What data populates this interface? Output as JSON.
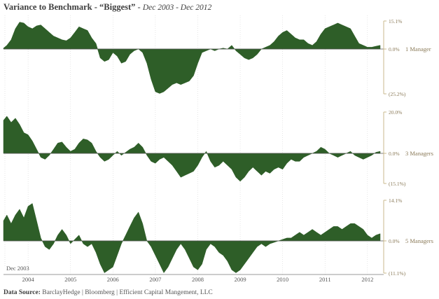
{
  "title": {
    "main": "Variance to Benchmark - “Biggest”",
    "separator": " - ",
    "range": "Dec 2003 - Dec 2012"
  },
  "source": {
    "label": "Data Source:",
    "text": "BarclayHedge | Bloomberg | Efficient Capital Mangement, LLC"
  },
  "colors": {
    "fill": "#2e5e28",
    "axis": "#c9b88d",
    "grid": "#d6d6d6",
    "tick_text": "#8a7a58"
  },
  "chart_data": [
    {
      "type": "area",
      "series_label": "1 Manager",
      "tick_labels": {
        "top": "15.1%",
        "zero": "0.0%",
        "bottom": "(25.2%)"
      },
      "ylim": [
        -25.2,
        15.1
      ],
      "x": [
        2003.92,
        2004.0,
        2004.1,
        2004.2,
        2004.3,
        2004.4,
        2004.5,
        2004.6,
        2004.7,
        2004.8,
        2004.9,
        2005.0,
        2005.1,
        2005.2,
        2005.3,
        2005.4,
        2005.5,
        2005.6,
        2005.7,
        2005.8,
        2005.9,
        2006.0,
        2006.1,
        2006.2,
        2006.3,
        2006.4,
        2006.5,
        2006.6,
        2006.7,
        2006.8,
        2006.9,
        2007.0,
        2007.1,
        2007.2,
        2007.3,
        2007.4,
        2007.5,
        2007.6,
        2007.7,
        2007.8,
        2007.9,
        2008.0,
        2008.1,
        2008.2,
        2008.3,
        2008.4,
        2008.5,
        2008.6,
        2008.7,
        2008.8,
        2008.9,
        2009.0,
        2009.1,
        2009.2,
        2009.3,
        2009.4,
        2009.5,
        2009.6,
        2009.7,
        2009.8,
        2009.9,
        2010.0,
        2010.1,
        2010.2,
        2010.3,
        2010.4,
        2010.5,
        2010.6,
        2010.7,
        2010.8,
        2010.9,
        2011.0,
        2011.1,
        2011.2,
        2011.3,
        2011.4,
        2011.5,
        2011.6,
        2011.7,
        2011.8,
        2011.9,
        2012.0,
        2012.1,
        2012.2,
        2012.3,
        2012.4,
        2012.5,
        2012.6,
        2012.7,
        2012.8
      ],
      "values": [
        0.5,
        2,
        5,
        11,
        14.5,
        14,
        12,
        11,
        12.5,
        13,
        11,
        9,
        7,
        6,
        5,
        4.5,
        6,
        9,
        12,
        11,
        10,
        6,
        3,
        -5,
        -7,
        -6,
        -2,
        -4,
        -8,
        -7,
        -3,
        -1,
        0,
        -2,
        -8,
        -17,
        -24,
        -25,
        -24,
        -22,
        -20,
        -19,
        -20,
        -19,
        -18,
        -15,
        -8,
        -2,
        -1,
        0,
        -1,
        0,
        0.5,
        0,
        2,
        -1,
        -3,
        -5,
        -6,
        -5,
        -3,
        0,
        1,
        2,
        4,
        7,
        9,
        10,
        8,
        6,
        5,
        5,
        3,
        2,
        4,
        8,
        11,
        12,
        13,
        14,
        13,
        12,
        11,
        7,
        3,
        2,
        1,
        1,
        1.5,
        2
      ]
    },
    {
      "type": "area",
      "series_label": "3 Managers",
      "tick_labels": {
        "top": "20.0%",
        "zero": "0.0%",
        "bottom": "(15.1%)"
      },
      "ylim": [
        -15.1,
        20.0
      ],
      "x": [
        2003.92,
        2004.0,
        2004.1,
        2004.2,
        2004.3,
        2004.4,
        2004.5,
        2004.6,
        2004.7,
        2004.8,
        2004.9,
        2005.0,
        2005.1,
        2005.2,
        2005.3,
        2005.4,
        2005.5,
        2005.6,
        2005.7,
        2005.8,
        2005.9,
        2006.0,
        2006.1,
        2006.2,
        2006.3,
        2006.4,
        2006.5,
        2006.6,
        2006.7,
        2006.8,
        2006.9,
        2007.0,
        2007.1,
        2007.2,
        2007.3,
        2007.4,
        2007.5,
        2007.6,
        2007.7,
        2007.8,
        2007.9,
        2008.0,
        2008.1,
        2008.2,
        2008.3,
        2008.4,
        2008.5,
        2008.6,
        2008.7,
        2008.8,
        2008.9,
        2009.0,
        2009.1,
        2009.2,
        2009.3,
        2009.4,
        2009.5,
        2009.6,
        2009.7,
        2009.8,
        2009.9,
        2010.0,
        2010.1,
        2010.2,
        2010.3,
        2010.4,
        2010.5,
        2010.6,
        2010.7,
        2010.8,
        2010.9,
        2011.0,
        2011.1,
        2011.2,
        2011.3,
        2011.4,
        2011.5,
        2011.6,
        2011.7,
        2011.8,
        2011.9,
        2012.0,
        2012.1,
        2012.2,
        2012.3,
        2012.4,
        2012.5,
        2012.6,
        2012.7,
        2012.8
      ],
      "values": [
        16,
        18,
        15,
        17,
        14,
        10,
        9,
        6,
        2,
        -2,
        -3,
        -1,
        2,
        5,
        5.5,
        3,
        1,
        2,
        5,
        7,
        6.5,
        5,
        1,
        -2,
        -4,
        -3,
        -1,
        1,
        -1,
        0.5,
        2,
        3,
        5,
        3,
        -1,
        -4,
        -5,
        -3,
        -2,
        -4,
        -6,
        -9,
        -12,
        -11,
        -10,
        -9,
        -6,
        -2,
        1,
        -4,
        -7,
        -6,
        -4,
        -6,
        -8,
        -12,
        -14,
        -12,
        -9,
        -7,
        -9,
        -11,
        -9,
        -10,
        -8,
        -7,
        -8,
        -5,
        -3,
        -4,
        -4,
        -2,
        -1,
        0,
        1,
        3,
        2,
        0,
        -1,
        -2,
        -1,
        0,
        1,
        -1,
        -2,
        -3,
        -2,
        -1,
        0.5,
        1
      ]
    },
    {
      "type": "area",
      "series_label": "5 Managers",
      "tick_labels": {
        "top": "14.1%",
        "zero": "0.0%",
        "bottom": "(11.1%)"
      },
      "ylim": [
        -11.1,
        14.1
      ],
      "x": [
        2003.92,
        2004.0,
        2004.1,
        2004.2,
        2004.3,
        2004.4,
        2004.5,
        2004.6,
        2004.7,
        2004.8,
        2004.9,
        2005.0,
        2005.1,
        2005.2,
        2005.3,
        2005.4,
        2005.5,
        2005.6,
        2005.7,
        2005.8,
        2005.9,
        2006.0,
        2006.1,
        2006.2,
        2006.3,
        2006.4,
        2006.5,
        2006.6,
        2006.7,
        2006.8,
        2006.9,
        2007.0,
        2007.1,
        2007.2,
        2007.3,
        2007.4,
        2007.5,
        2007.6,
        2007.7,
        2007.8,
        2007.9,
        2008.0,
        2008.1,
        2008.2,
        2008.3,
        2008.4,
        2008.5,
        2008.6,
        2008.7,
        2008.8,
        2008.9,
        2009.0,
        2009.1,
        2009.2,
        2009.3,
        2009.4,
        2009.5,
        2009.6,
        2009.7,
        2009.8,
        2009.9,
        2010.0,
        2010.1,
        2010.2,
        2010.3,
        2010.4,
        2010.5,
        2010.6,
        2010.7,
        2010.8,
        2010.9,
        2011.0,
        2011.1,
        2011.2,
        2011.3,
        2011.4,
        2011.5,
        2011.6,
        2011.7,
        2011.8,
        2011.9,
        2012.0,
        2012.1,
        2012.2,
        2012.3,
        2012.4,
        2012.5,
        2012.6,
        2012.7,
        2012.8
      ],
      "values": [
        7,
        9,
        6,
        9,
        11,
        8,
        12,
        13,
        7,
        1,
        -2,
        -3,
        -1,
        2,
        4,
        2,
        -1,
        0.5,
        2,
        -1,
        -2,
        -1,
        -4,
        -8,
        -11,
        -10,
        -9,
        -5,
        -1,
        2,
        5,
        8,
        10,
        6,
        0,
        -2,
        -5,
        -8,
        -11,
        -9,
        -6,
        -3,
        -1,
        -3,
        -6,
        -9,
        -10,
        -8,
        -3,
        -1,
        -2,
        -4,
        -5,
        -7,
        -10,
        -11,
        -10,
        -8,
        -6,
        -4,
        -2,
        -1,
        -2,
        -1,
        -0.5,
        0,
        0.5,
        1,
        1,
        2,
        3,
        2,
        3,
        4,
        3,
        2,
        3,
        4,
        5,
        5,
        4,
        5,
        6,
        6,
        5,
        4,
        2,
        1,
        2,
        2.5
      ]
    }
  ],
  "x_axis": {
    "ticks": [
      "2004",
      "2005",
      "2006",
      "2007",
      "2008",
      "2009",
      "2010",
      "2011",
      "2012"
    ],
    "start_label": "Dec 2003"
  }
}
